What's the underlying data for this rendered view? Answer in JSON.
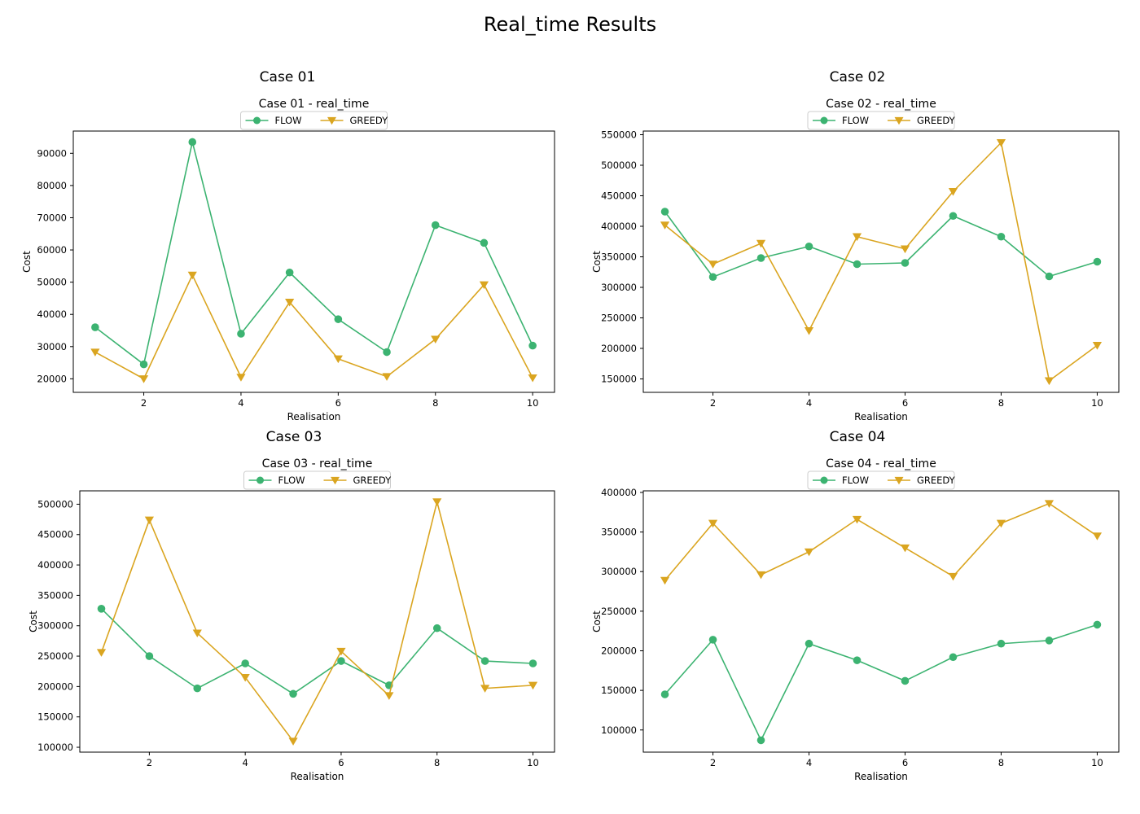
{
  "figure": {
    "suptitle": "Real_time Results"
  },
  "colors": {
    "flow": "#3cb371",
    "greedy": "#daa520",
    "axis": "#000000",
    "background": "#ffffff"
  },
  "chart_data": [
    {
      "type": "line",
      "case_title": "Case 01",
      "title": "Case 01 - real_time",
      "xlabel": "Realisation",
      "ylabel": "Cost",
      "x": [
        1,
        2,
        3,
        4,
        5,
        6,
        7,
        8,
        9,
        10
      ],
      "xticks": [
        2,
        4,
        6,
        8,
        10
      ],
      "xlim": [
        0.55,
        10.45
      ],
      "ylim": [
        15800,
        96900
      ],
      "yticks": [
        20000,
        30000,
        40000,
        50000,
        60000,
        70000,
        80000,
        90000
      ],
      "grid": false,
      "legend_position": "top-center",
      "series": [
        {
          "name": "FLOW",
          "marker": "circle",
          "values": [
            36000,
            24500,
            93500,
            34000,
            53000,
            38500,
            28300,
            67700,
            62200,
            30300
          ]
        },
        {
          "name": "GREEDY",
          "marker": "triangle-down",
          "values": [
            28300,
            20000,
            52200,
            20500,
            43800,
            26200,
            20700,
            32300,
            49200,
            20300
          ]
        }
      ]
    },
    {
      "type": "line",
      "case_title": "Case 02",
      "title": "Case 02 - real_time",
      "xlabel": "Realisation",
      "ylabel": "Cost",
      "x": [
        1,
        2,
        3,
        4,
        5,
        6,
        7,
        8,
        9,
        10
      ],
      "xticks": [
        2,
        4,
        6,
        8,
        10
      ],
      "xlim": [
        0.55,
        10.45
      ],
      "ylim": [
        128000,
        556000
      ],
      "yticks": [
        150000,
        200000,
        250000,
        300000,
        350000,
        400000,
        450000,
        500000,
        550000
      ],
      "grid": false,
      "legend_position": "top-center",
      "series": [
        {
          "name": "FLOW",
          "marker": "circle",
          "values": [
            424000,
            317000,
            348000,
            367000,
            338000,
            340000,
            417000,
            383000,
            318000,
            342000
          ]
        },
        {
          "name": "GREEDY",
          "marker": "triangle-down",
          "values": [
            402000,
            338000,
            372000,
            229000,
            383000,
            363000,
            457000,
            537000,
            147000,
            205000
          ]
        }
      ]
    },
    {
      "type": "line",
      "case_title": "Case 03",
      "title": "Case 03 - real_time",
      "xlabel": "Realisation",
      "ylabel": "Cost",
      "x": [
        1,
        2,
        3,
        4,
        5,
        6,
        7,
        8,
        9,
        10
      ],
      "xticks": [
        2,
        4,
        6,
        8,
        10
      ],
      "xlim": [
        0.55,
        10.45
      ],
      "ylim": [
        92000,
        522000
      ],
      "yticks": [
        100000,
        150000,
        200000,
        250000,
        300000,
        350000,
        400000,
        450000,
        500000
      ],
      "grid": false,
      "legend_position": "top-center",
      "series": [
        {
          "name": "FLOW",
          "marker": "circle",
          "values": [
            328000,
            250000,
            197000,
            238000,
            188000,
            242000,
            202000,
            296000,
            242000,
            238000
          ]
        },
        {
          "name": "GREEDY",
          "marker": "triangle-down",
          "values": [
            256000,
            474000,
            288000,
            215000,
            110000,
            258000,
            185000,
            504000,
            197000,
            202000
          ]
        }
      ]
    },
    {
      "type": "line",
      "case_title": "Case 04",
      "title": "Case 04 - real_time",
      "xlabel": "Realisation",
      "ylabel": "Cost",
      "x": [
        1,
        2,
        3,
        4,
        5,
        6,
        7,
        8,
        9,
        10
      ],
      "xticks": [
        2,
        4,
        6,
        8,
        10
      ],
      "xlim": [
        0.55,
        10.45
      ],
      "ylim": [
        72000,
        402000
      ],
      "yticks": [
        100000,
        150000,
        200000,
        250000,
        300000,
        350000,
        400000
      ],
      "grid": false,
      "legend_position": "top-center",
      "series": [
        {
          "name": "FLOW",
          "marker": "circle",
          "values": [
            145000,
            214000,
            87000,
            209000,
            188000,
            162000,
            192000,
            209000,
            213000,
            233000
          ]
        },
        {
          "name": "GREEDY",
          "marker": "triangle-down",
          "values": [
            289000,
            361000,
            296000,
            325000,
            366000,
            330000,
            294000,
            361000,
            386000,
            345000
          ]
        }
      ]
    }
  ]
}
